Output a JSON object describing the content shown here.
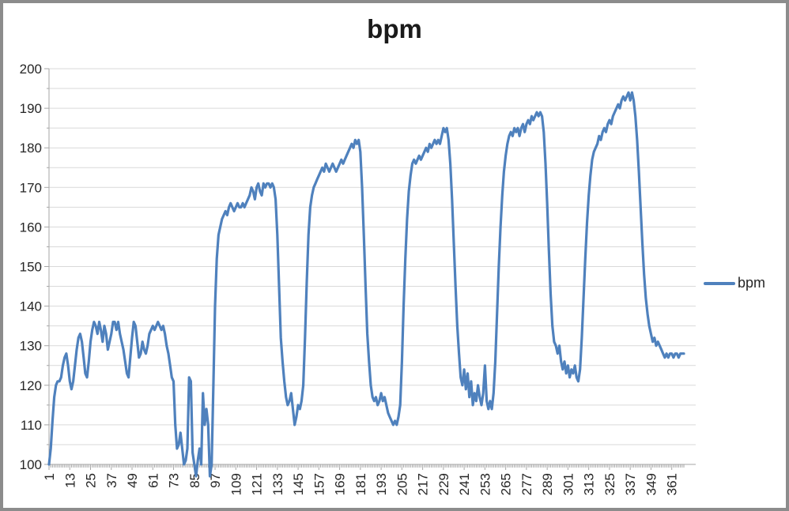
{
  "window": {
    "title": "bpm"
  },
  "colors": {
    "series_line": "#4F81BD",
    "gridline": "#D9D9D9",
    "axis": "#A6A6A6",
    "frame_border": "#8C8C8C",
    "text": "#262626"
  },
  "chart_data": {
    "type": "line",
    "title": "bpm",
    "legend_label": "bpm",
    "legend_position": "right",
    "grid": "on",
    "xlabel": "",
    "ylabel": "",
    "ylim": [
      100,
      200
    ],
    "y_tick_interval": 10,
    "y_minor_grid_step": 5,
    "y_tick_labels": [
      100,
      110,
      120,
      130,
      140,
      150,
      160,
      170,
      180,
      190,
      200
    ],
    "x_start": 1,
    "x_count": 368,
    "x_tick_interval": 12,
    "x_tick_labels": [
      "1",
      "13",
      "25",
      "37",
      "49",
      "61",
      "73",
      "85",
      "97",
      "109",
      "121",
      "133",
      "145",
      "157",
      "169",
      "181",
      "193",
      "205",
      "217",
      "229",
      "241",
      "253",
      "265",
      "277",
      "289",
      "301",
      "313",
      "325",
      "337",
      "349",
      "361"
    ],
    "series": [
      {
        "name": "bpm",
        "color": "#4F81BD",
        "values": [
          100,
          104,
          111,
          117,
          120,
          121,
          121,
          122,
          125,
          127,
          128,
          125,
          121,
          119,
          121,
          125,
          129,
          132,
          133,
          131,
          127,
          123,
          122,
          126,
          131,
          134,
          136,
          135,
          133,
          136,
          134,
          131,
          135,
          133,
          129,
          131,
          133,
          136,
          136,
          134,
          136,
          133,
          131,
          129,
          126,
          123,
          122,
          127,
          132,
          136,
          135,
          131,
          127,
          128,
          131,
          129,
          128,
          130,
          133,
          134,
          135,
          134,
          135,
          136,
          135,
          134,
          135,
          133,
          130,
          128,
          125,
          122,
          121,
          110,
          104,
          105,
          108,
          104,
          100,
          101,
          104,
          122,
          121,
          103,
          100,
          97,
          101,
          104,
          100,
          118,
          110,
          114,
          110,
          97,
          100,
          120,
          140,
          152,
          158,
          160,
          162,
          163,
          164,
          163,
          165,
          166,
          165,
          164,
          165,
          166,
          165,
          165,
          166,
          165,
          166,
          167,
          168,
          170,
          169,
          167,
          170,
          171,
          169,
          168,
          171,
          170,
          171,
          171,
          170,
          171,
          170,
          167,
          158,
          145,
          132,
          126,
          121,
          117,
          115,
          116,
          118,
          114,
          110,
          112,
          115,
          114,
          116,
          120,
          132,
          146,
          158,
          165,
          168,
          170,
          171,
          172,
          173,
          174,
          175,
          174,
          176,
          175,
          174,
          175,
          176,
          175,
          174,
          175,
          176,
          177,
          176,
          177,
          178,
          179,
          180,
          181,
          180,
          182,
          181,
          182,
          179,
          170,
          158,
          145,
          133,
          126,
          120,
          117,
          116,
          117,
          115,
          116,
          118,
          116,
          117,
          115,
          113,
          112,
          111,
          110,
          111,
          110,
          112,
          115,
          126,
          140,
          152,
          162,
          169,
          173,
          176,
          177,
          176,
          177,
          178,
          177,
          178,
          179,
          180,
          179,
          181,
          180,
          181,
          182,
          181,
          182,
          181,
          183,
          185,
          184,
          185,
          182,
          176,
          167,
          156,
          145,
          135,
          128,
          122,
          120,
          124,
          119,
          123,
          117,
          121,
          115,
          118,
          116,
          120,
          117,
          115,
          118,
          125,
          116,
          114,
          116,
          114,
          118,
          126,
          138,
          150,
          160,
          168,
          174,
          178,
          181,
          183,
          184,
          183,
          185,
          184,
          185,
          183,
          185,
          186,
          184,
          186,
          187,
          186,
          188,
          187,
          188,
          189,
          188,
          189,
          188,
          184,
          176,
          166,
          154,
          143,
          135,
          131,
          130,
          128,
          130,
          126,
          124,
          126,
          123,
          125,
          122,
          124,
          123,
          125,
          122,
          121,
          124,
          132,
          142,
          152,
          161,
          168,
          173,
          177,
          179,
          180,
          181,
          183,
          182,
          184,
          185,
          184,
          186,
          187,
          186,
          188,
          189,
          190,
          191,
          190,
          192,
          193,
          192,
          193,
          194,
          192,
          194,
          192,
          188,
          182,
          174,
          165,
          156,
          148,
          142,
          138,
          135,
          133,
          131,
          132,
          130,
          131,
          130,
          129,
          128,
          127,
          128,
          127,
          128,
          128,
          127,
          128,
          128,
          127,
          128,
          128,
          128
        ]
      }
    ]
  }
}
